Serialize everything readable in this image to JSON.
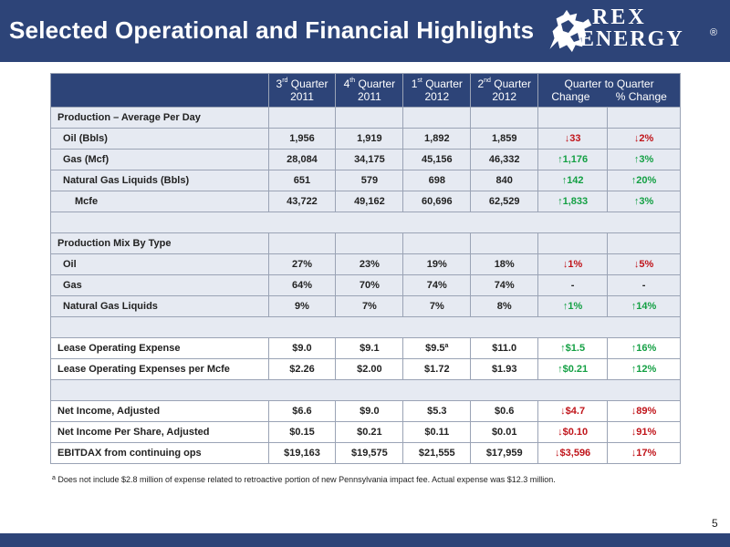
{
  "title": "Selected Operational and Financial Highlights",
  "logo": {
    "line1": "REX",
    "line2": "ENERGY",
    "reg": "®"
  },
  "columns": [
    {
      "label": "Quarter",
      "prefix": "3",
      "sup": "rd",
      "year": "2011"
    },
    {
      "label": "Quarter",
      "prefix": "4",
      "sup": "th",
      "year": "2011"
    },
    {
      "label": "Quarter",
      "prefix": "1",
      "sup": "st",
      "year": "2012"
    },
    {
      "label": "Quarter",
      "prefix": "2",
      "sup": "nd",
      "year": "2012"
    }
  ],
  "qtq": {
    "title": "Quarter to Quarter",
    "change": "Change",
    "pct_change": "% Change"
  },
  "sections": {
    "production": "Production – Average Per Day",
    "mix": "Production Mix By Type"
  },
  "rows": {
    "oil": {
      "label": "Oil (Bbls)",
      "v": [
        "1,956",
        "1,919",
        "1,892",
        "1,859"
      ],
      "chg": "↓33",
      "pct": "↓2%"
    },
    "gas": {
      "label": "Gas (Mcf)",
      "v": [
        "28,084",
        "34,175",
        "45,156",
        "46,332"
      ],
      "chg": "↑1,176",
      "pct": "↑3%"
    },
    "ngl": {
      "label": "Natural Gas Liquids (Bbls)",
      "v": [
        "651",
        "579",
        "698",
        "840"
      ],
      "chg": "↑142",
      "pct": "↑20%"
    },
    "mcfe": {
      "label": "Mcfe",
      "v": [
        "43,722",
        "49,162",
        "60,696",
        "62,529"
      ],
      "chg": "↑1,833",
      "pct": "↑3%"
    },
    "mix_oil": {
      "label": "Oil",
      "v": [
        "27%",
        "23%",
        "19%",
        "18%"
      ],
      "chg": "↓1%",
      "pct": "↓5%"
    },
    "mix_gas": {
      "label": "Gas",
      "v": [
        "64%",
        "70%",
        "74%",
        "74%"
      ],
      "chg": "-",
      "pct": "-"
    },
    "mix_ngl": {
      "label": "Natural Gas Liquids",
      "v": [
        "9%",
        "7%",
        "7%",
        "8%"
      ],
      "chg": "↑1%",
      "pct": "↑14%"
    },
    "loe": {
      "label": "Lease Operating Expense",
      "v": [
        "$9.0",
        "$9.1",
        "$9.5",
        "$11.0"
      ],
      "v3_sup": "a",
      "chg": "↑$1.5",
      "pct": "↑16%"
    },
    "loe_mcfe": {
      "label": "Lease Operating Expenses per Mcfe",
      "v": [
        "$2.26",
        "$2.00",
        "$1.72",
        "$1.93"
      ],
      "chg": "↑$0.21",
      "pct": "↑12%"
    },
    "ni": {
      "label": "Net Income, Adjusted",
      "v": [
        "$6.6",
        "$9.0",
        "$5.3",
        "$0.6"
      ],
      "chg": "↓$4.7",
      "pct": "↓89%"
    },
    "nips": {
      "label": "Net Income Per Share, Adjusted",
      "v": [
        "$0.15",
        "$0.21",
        "$0.11",
        "$0.01"
      ],
      "chg": "↓$0.10",
      "pct": "↓91%"
    },
    "ebitdax": {
      "label": "EBITDAX from continuing ops",
      "v": [
        "$19,163",
        "$19,575",
        "$21,555",
        "$17,959"
      ],
      "chg": "↓$3,596",
      "pct": "↓17%"
    }
  },
  "footnote": {
    "marker": "a",
    "text": "Does not include $2.8 million of expense related to retroactive portion of new Pennsylvania impact fee. Actual expense was $12.3 million."
  },
  "page_number": "5",
  "colors": {
    "navy": "#2d4478",
    "shade": "#e6eaf2",
    "negative": "#c0141a",
    "positive": "#14a044"
  }
}
